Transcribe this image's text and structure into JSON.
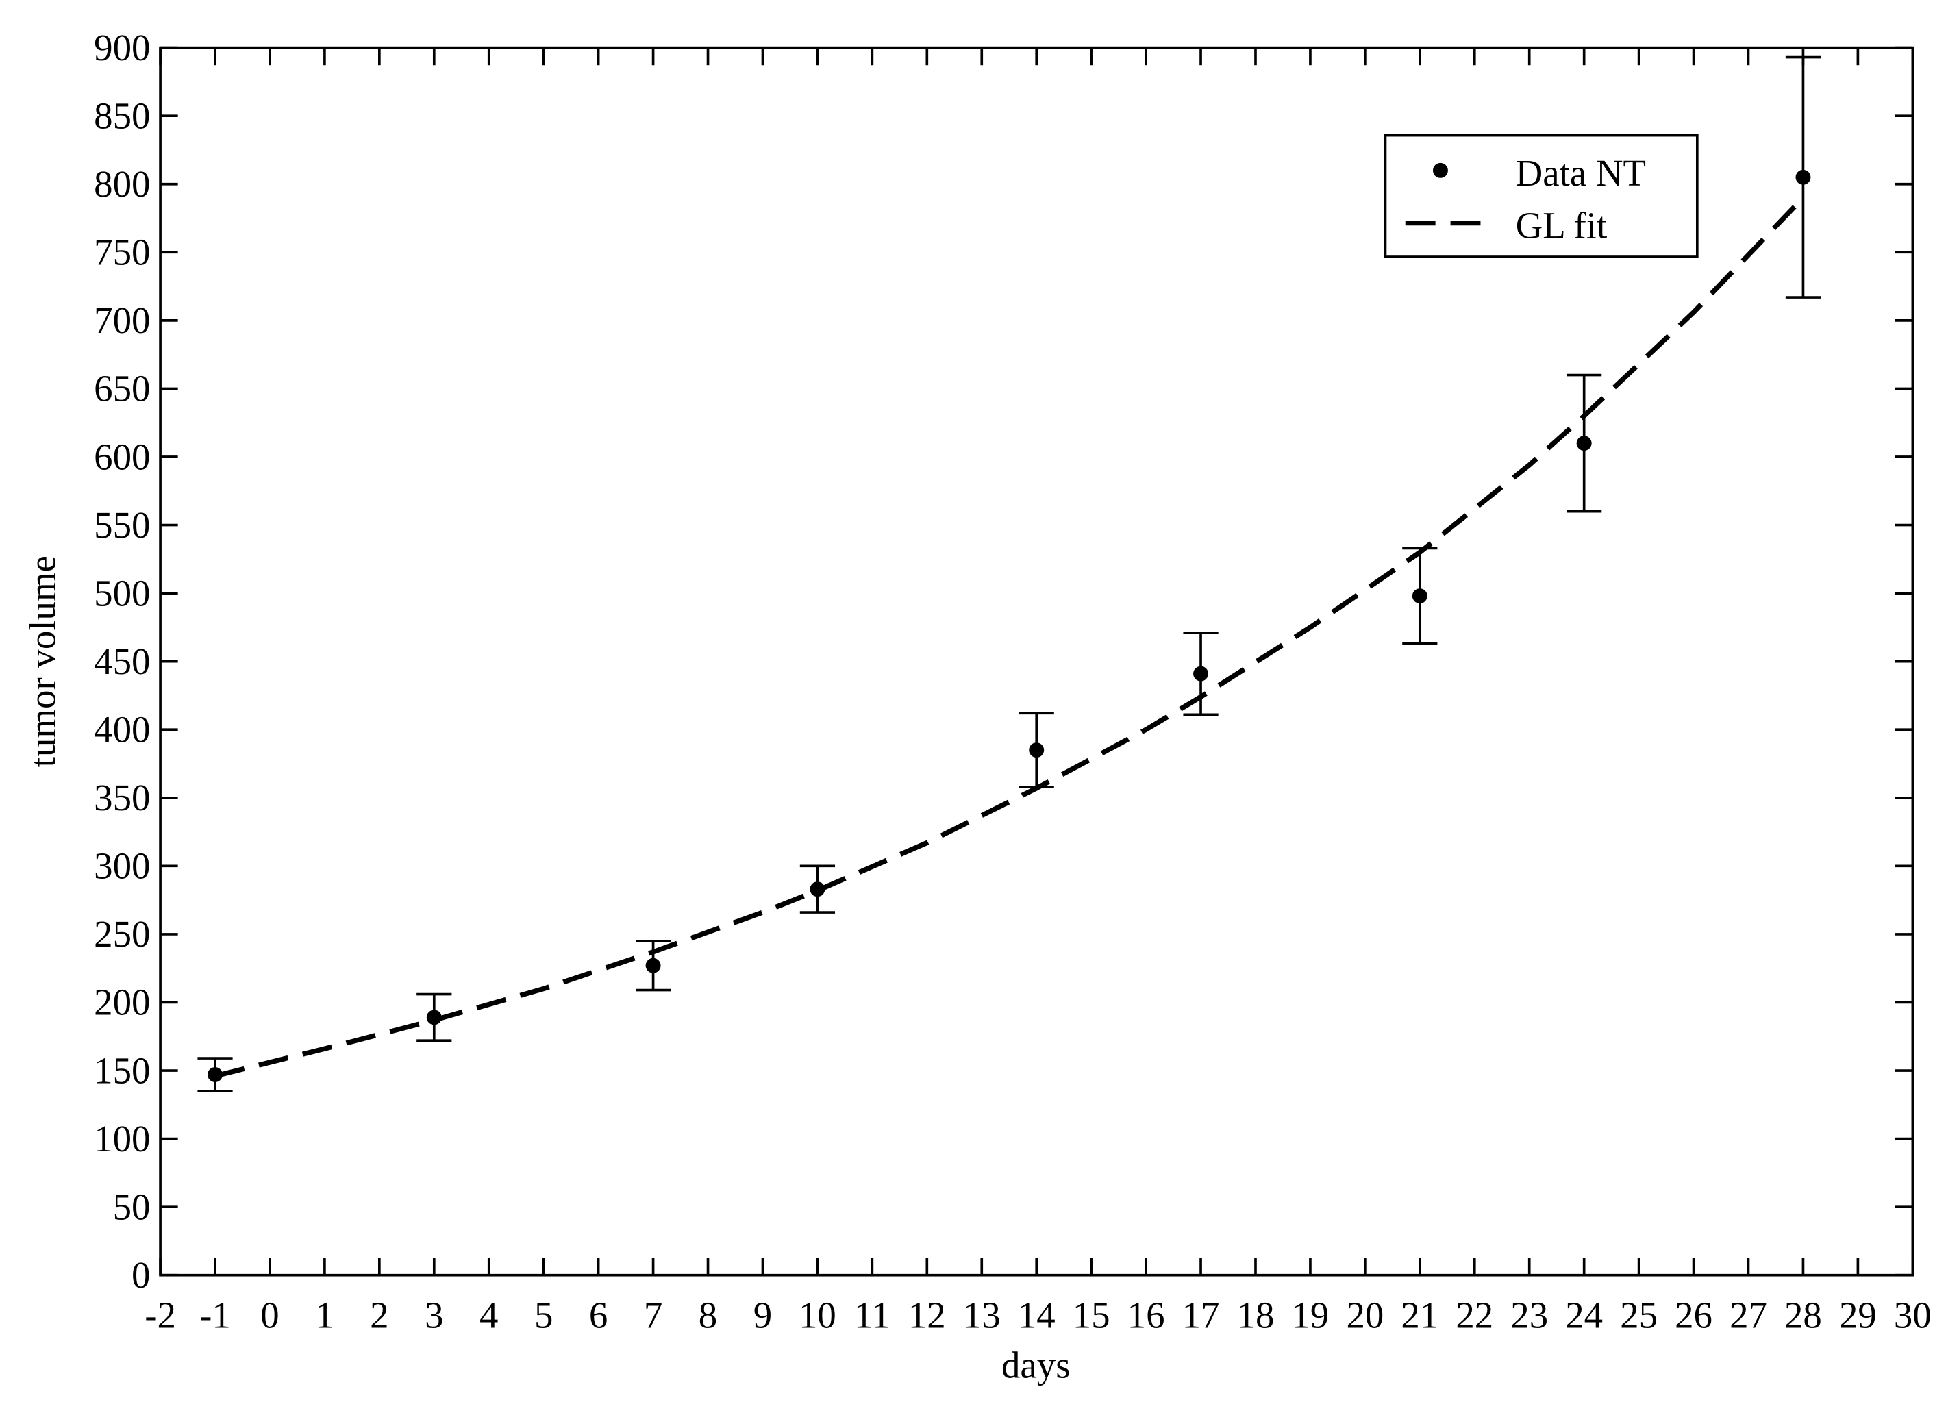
{
  "chart_data": {
    "type": "scatter",
    "xlabel": "days",
    "ylabel": "tumor volume",
    "xlim": [
      -2,
      30
    ],
    "xticks": [
      -2,
      -1,
      0,
      1,
      2,
      3,
      4,
      5,
      6,
      7,
      8,
      9,
      10,
      11,
      12,
      13,
      14,
      15,
      16,
      17,
      18,
      19,
      20,
      21,
      22,
      23,
      24,
      25,
      26,
      27,
      28,
      29,
      30
    ],
    "ylim": [
      0,
      900
    ],
    "yticks": [
      0,
      50,
      100,
      150,
      200,
      250,
      300,
      350,
      400,
      450,
      500,
      550,
      600,
      650,
      700,
      750,
      800,
      850,
      900
    ],
    "legend": "upper right",
    "series": [
      {
        "name": "Data NT",
        "mode": "markers",
        "color": "#000000",
        "x": [
          -1,
          3,
          7,
          10,
          14,
          17,
          21,
          24,
          28
        ],
        "values": [
          147,
          189,
          227,
          283,
          385,
          441,
          498,
          610,
          805
        ],
        "errors": [
          12,
          17,
          18,
          17,
          27,
          30,
          35,
          50,
          88
        ]
      },
      {
        "name": "GL fit",
        "mode": "dashed-line",
        "color": "#000000",
        "x": [
          -1,
          1,
          3,
          5,
          7,
          9,
          10,
          12,
          14,
          16,
          17,
          19,
          21,
          23,
          24,
          26,
          28
        ],
        "values": [
          146,
          166,
          187,
          210,
          237,
          266,
          282,
          317,
          357,
          400,
          424,
          475,
          530,
          594,
          630,
          706,
          790
        ]
      }
    ]
  }
}
